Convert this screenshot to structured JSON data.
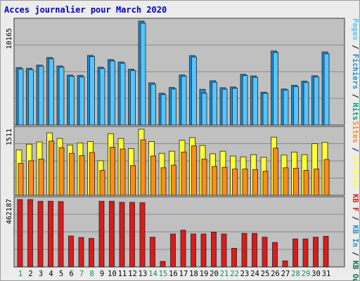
{
  "title": "Acces journalier pour March 2020",
  "colors": {
    "pages": "#55c5ff",
    "fichiers": "#1a8fd6",
    "hits": "#00a07a",
    "visites": "#ffff33",
    "sites": "#ff8c1a",
    "kbf": "#dd1a1a",
    "kbin": "#1a8fd6",
    "kbout": "#007050",
    "weekday": "#000000",
    "weekend": "#1a8a4a",
    "separator": "#000000"
  },
  "chart_data": [
    {
      "type": "bar",
      "panel": "top",
      "max_label": "10165",
      "right_label_parts": [
        {
          "text": "Pages",
          "color": "pages"
        },
        {
          "text": " / ",
          "color": "separator"
        },
        {
          "text": "Fichiers",
          "color": "fichiers"
        },
        {
          "text": " / ",
          "color": "separator"
        },
        {
          "text": "Hits",
          "color": "hits"
        }
      ],
      "x": [
        1,
        2,
        3,
        4,
        5,
        6,
        7,
        8,
        9,
        10,
        11,
        12,
        13,
        14,
        15,
        16,
        17,
        18,
        19,
        20,
        21,
        22,
        23,
        24,
        25,
        26,
        27,
        28,
        29,
        30,
        31
      ],
      "series": [
        {
          "name": "Hits",
          "values": [
            5620,
            5550,
            5860,
            6600,
            5780,
            4890,
            4860,
            6810,
            5660,
            6400,
            6170,
            5460,
            10165,
            4130,
            3110,
            3670,
            4900,
            6790,
            3490,
            4330,
            3650,
            3720,
            4960,
            4800,
            3210,
            7240,
            3520,
            3890,
            4290,
            4820,
            7150
          ]
        },
        {
          "name": "Fichiers",
          "values": [
            5480,
            5420,
            5760,
            6480,
            5650,
            4770,
            4710,
            6690,
            5520,
            6260,
            6040,
            5320,
            9960,
            3990,
            2980,
            3530,
            4780,
            6650,
            3110,
            4190,
            3510,
            3600,
            4840,
            4670,
            3110,
            7100,
            3420,
            3760,
            4170,
            4710,
            6980
          ]
        }
      ],
      "ylim": [
        0,
        10165
      ]
    },
    {
      "type": "bar",
      "panel": "middle",
      "max_label": "1511",
      "right_label_parts": [
        {
          "text": "Sites",
          "color": "sites"
        },
        {
          "text": " / ",
          "color": "separator"
        },
        {
          "text": "Visites",
          "color": "visites"
        }
      ],
      "x": [
        1,
        2,
        3,
        4,
        5,
        6,
        7,
        8,
        9,
        10,
        11,
        12,
        13,
        14,
        15,
        16,
        17,
        18,
        19,
        20,
        21,
        22,
        23,
        24,
        25,
        26,
        27,
        28,
        29,
        30,
        31
      ],
      "series": [
        {
          "name": "Visites",
          "values": [
            1040,
            1170,
            1220,
            1430,
            1300,
            1150,
            1200,
            1230,
            790,
            1410,
            1300,
            1070,
            1511,
            1230,
            960,
            1010,
            1260,
            1320,
            1140,
            950,
            1010,
            900,
            880,
            930,
            870,
            1330,
            920,
            990,
            930,
            1180,
            1210
          ]
        },
        {
          "name": "Sites",
          "values": [
            730,
            790,
            830,
            1240,
            1090,
            960,
            910,
            980,
            570,
            1100,
            1060,
            680,
            1270,
            900,
            630,
            690,
            990,
            1130,
            830,
            660,
            640,
            600,
            600,
            590,
            550,
            1080,
            630,
            620,
            570,
            600,
            820
          ]
        }
      ],
      "ylim": [
        0,
        1511
      ]
    },
    {
      "type": "bar",
      "panel": "bottom",
      "max_label": "462187",
      "right_label_parts": [
        {
          "text": "KB F",
          "color": "kbf"
        },
        {
          "text": " / ",
          "color": "separator"
        },
        {
          "text": "KB In",
          "color": "kbin"
        },
        {
          "text": " / ",
          "color": "separator"
        },
        {
          "text": "KB Out",
          "color": "kbout"
        }
      ],
      "x": [
        1,
        2,
        3,
        4,
        5,
        6,
        7,
        8,
        9,
        10,
        11,
        12,
        13,
        14,
        15,
        16,
        17,
        18,
        19,
        20,
        21,
        22,
        23,
        24,
        25,
        26,
        27,
        28,
        29,
        30,
        31
      ],
      "series": [
        {
          "name": "KB F",
          "values": [
            462187,
            462187,
            450000,
            450000,
            448000,
            212000,
            202000,
            196000,
            450000,
            450000,
            443000,
            443000,
            440000,
            204000,
            38000,
            226000,
            252000,
            226000,
            226000,
            238000,
            226000,
            128000,
            230000,
            230000,
            204000,
            168000,
            42000,
            192000,
            192000,
            204000,
            210000
          ]
        }
      ],
      "ylim": [
        0,
        462187
      ]
    }
  ],
  "days": [
    {
      "label": "1",
      "weekend": true
    },
    {
      "label": "2",
      "weekend": false
    },
    {
      "label": "3",
      "weekend": false
    },
    {
      "label": "4",
      "weekend": false
    },
    {
      "label": "5",
      "weekend": false
    },
    {
      "label": "6",
      "weekend": false
    },
    {
      "label": "7",
      "weekend": true
    },
    {
      "label": "8",
      "weekend": true
    },
    {
      "label": "9",
      "weekend": false
    },
    {
      "label": "10",
      "weekend": false
    },
    {
      "label": "11",
      "weekend": false
    },
    {
      "label": "12",
      "weekend": false
    },
    {
      "label": "13",
      "weekend": false
    },
    {
      "label": "14",
      "weekend": true
    },
    {
      "label": "15",
      "weekend": true
    },
    {
      "label": "16",
      "weekend": false
    },
    {
      "label": "17",
      "weekend": false
    },
    {
      "label": "18",
      "weekend": false
    },
    {
      "label": "19",
      "weekend": false
    },
    {
      "label": "20",
      "weekend": false
    },
    {
      "label": "21",
      "weekend": true
    },
    {
      "label": "22",
      "weekend": true
    },
    {
      "label": "23",
      "weekend": false
    },
    {
      "label": "24",
      "weekend": false
    },
    {
      "label": "25",
      "weekend": false
    },
    {
      "label": "26",
      "weekend": false
    },
    {
      "label": "27",
      "weekend": false
    },
    {
      "label": "28",
      "weekend": true
    },
    {
      "label": "29",
      "weekend": true
    },
    {
      "label": "30",
      "weekend": false
    },
    {
      "label": "31",
      "weekend": false
    }
  ]
}
